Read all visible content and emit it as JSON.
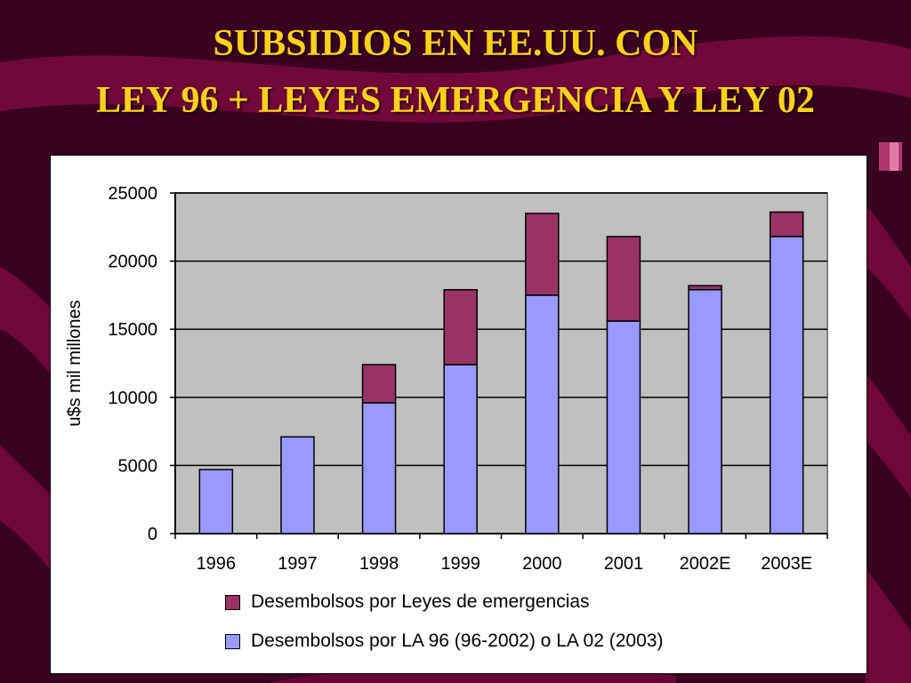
{
  "title_line_1": "SUBSIDIOS EN EE.UU. CON",
  "title_line_2": "LEY 96 + LEYES EMERGENCIA Y LEY 02",
  "colors": {
    "background": "#3a0020",
    "ribbon": "#7a0a3e",
    "title": "#ffd21a",
    "plot_bg": "#c0c0c0",
    "series_emergencia": "#993366",
    "series_la": "#9999ff"
  },
  "chart_data": {
    "type": "bar",
    "stacked": true,
    "categories": [
      "1996",
      "1997",
      "1998",
      "1999",
      "2000",
      "2001",
      "2002E",
      "2003E"
    ],
    "series": [
      {
        "name": "Desembolsos por LA 96 (96-2002) o LA 02 (2003)",
        "values": [
          4700,
          7100,
          9600,
          12400,
          17500,
          15600,
          17900,
          21800
        ]
      },
      {
        "name": "Desembolsos por Leyes de emergencias",
        "values": [
          0,
          0,
          2800,
          5500,
          6000,
          6200,
          300,
          1800
        ]
      }
    ],
    "ylabel": "u$s mil millones",
    "xlabel": "",
    "ylim": [
      0,
      25000
    ],
    "yticks": [
      0,
      5000,
      10000,
      15000,
      20000,
      25000
    ],
    "grid": true,
    "legend_position": "bottom",
    "legend": [
      {
        "label": "Desembolsos por Leyes de emergencias",
        "series": 1
      },
      {
        "label": "Desembolsos por LA 96 (96-2002) o LA 02 (2003)",
        "series": 0
      }
    ]
  }
}
